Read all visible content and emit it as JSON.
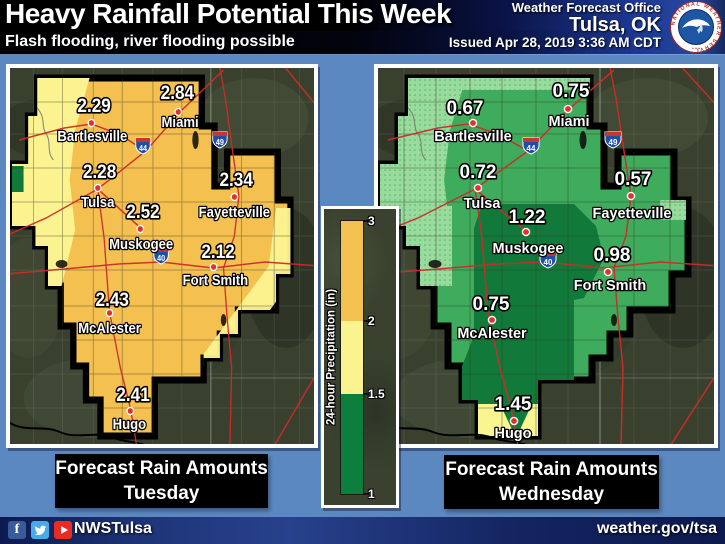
{
  "header": {
    "title": "Heavy Rainfall Potential This Week",
    "subtitle": "Flash flooding, river flooding possible",
    "office_line1": "Weather Forecast Office",
    "office_line2": "Tulsa, OK",
    "issued": "Issued Apr 28, 2019 3:36 AM CDT",
    "logo_text": "NATIONAL WEATHER SERVICE"
  },
  "legend": {
    "label": "24-hour Precipitation (in)",
    "ticks": [
      "3",
      "2",
      "1.5",
      "1"
    ],
    "segments": [
      {
        "range": "2-3",
        "color": "#F4C050"
      },
      {
        "range": "1.5-2",
        "color": "#FBF38F"
      },
      {
        "range": "1-1.5",
        "color": "#0C7F3E"
      }
    ]
  },
  "interstates": [
    "44",
    "49",
    "40"
  ],
  "maps": [
    {
      "id": "tuesday",
      "caption_line1": "Forecast Rain Amounts",
      "caption_line2": "Tuesday",
      "base_color": "#F4C050",
      "cities": [
        {
          "name": "Bartlesville",
          "value": "2.29"
        },
        {
          "name": "Miami",
          "value": "2.84"
        },
        {
          "name": "Tulsa",
          "value": "2.28"
        },
        {
          "name": "Fayetteville",
          "value": "2.34"
        },
        {
          "name": "Muskogee",
          "value": "2.52"
        },
        {
          "name": "Fort Smith",
          "value": "2.12"
        },
        {
          "name": "McAlester",
          "value": "2.43"
        },
        {
          "name": "Hugo",
          "value": "2.41"
        }
      ]
    },
    {
      "id": "wednesday",
      "caption_line1": "Forecast Rain Amounts",
      "caption_line2": "Wednesday",
      "base_color": "#3FAC5D",
      "cities": [
        {
          "name": "Bartlesville",
          "value": "0.67"
        },
        {
          "name": "Miami",
          "value": "0.75"
        },
        {
          "name": "Tulsa",
          "value": "0.72"
        },
        {
          "name": "Fayetteville",
          "value": "0.57"
        },
        {
          "name": "Muskogee",
          "value": "1.22"
        },
        {
          "name": "Fort Smith",
          "value": "0.98"
        },
        {
          "name": "McAlester",
          "value": "0.75"
        },
        {
          "name": "Hugo",
          "value": "1.45"
        }
      ]
    }
  ],
  "footer": {
    "social_handle": "NWSTulsa",
    "website": "weather.gov/tsa",
    "icons": [
      "facebook-icon",
      "twitter-icon",
      "youtube-icon"
    ]
  }
}
